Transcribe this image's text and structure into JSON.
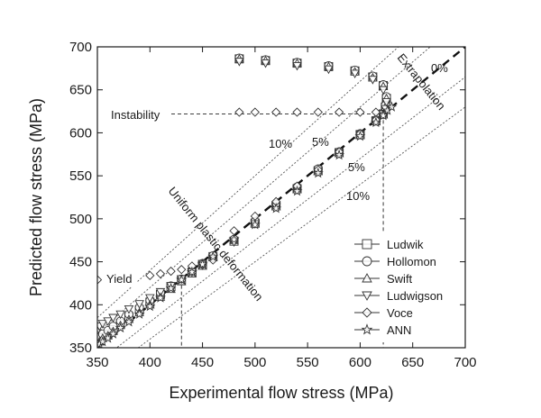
{
  "chart_data": {
    "type": "scatter",
    "xlabel": "Experimental flow stress (MPa)",
    "ylabel": "Predicted flow stress (MPa)",
    "xlim": [
      350,
      700
    ],
    "ylim": [
      350,
      700
    ],
    "xticks": [
      350,
      400,
      450,
      500,
      550,
      600,
      650,
      700
    ],
    "yticks": [
      350,
      400,
      450,
      500,
      550,
      600,
      650,
      700
    ],
    "reference_lines": [
      {
        "label": "0%",
        "ratio": 1.0,
        "style": "dashed-bold"
      },
      {
        "label": "5%",
        "ratio": 1.05,
        "style": "dotted"
      },
      {
        "label": "5%",
        "ratio": 0.95,
        "style": "dotted"
      },
      {
        "label": "10%",
        "ratio": 1.1,
        "style": "dotted"
      },
      {
        "label": "10%",
        "ratio": 0.9,
        "style": "dotted"
      }
    ],
    "annotations": {
      "instability": {
        "text": "Instability",
        "x": 622,
        "y": 622
      },
      "yield": {
        "text": "Yield",
        "x": 350,
        "y": 430
      },
      "yield_exp": 430,
      "uniform": "Uniform plastic deformation",
      "extrapolation": "Extrapolation"
    },
    "series": [
      {
        "name": "Ludwik",
        "marker": "square",
        "points": [
          [
            352,
            358
          ],
          [
            355,
            362
          ],
          [
            360,
            366
          ],
          [
            365,
            371
          ],
          [
            372,
            378
          ],
          [
            380,
            386
          ],
          [
            390,
            394
          ],
          [
            400,
            403
          ],
          [
            410,
            412
          ],
          [
            420,
            421
          ],
          [
            430,
            429
          ],
          [
            440,
            438
          ],
          [
            450,
            447
          ],
          [
            460,
            456
          ],
          [
            480,
            474
          ],
          [
            500,
            495
          ],
          [
            520,
            515
          ],
          [
            540,
            535
          ],
          [
            560,
            556
          ],
          [
            580,
            577
          ],
          [
            600,
            598
          ],
          [
            615,
            614
          ],
          [
            622,
            622
          ],
          [
            624,
            630
          ],
          [
            625,
            640
          ],
          [
            622,
            655
          ],
          [
            612,
            665
          ],
          [
            595,
            672
          ],
          [
            570,
            677
          ],
          [
            540,
            681
          ],
          [
            510,
            684
          ],
          [
            485,
            686
          ]
        ]
      },
      {
        "name": "Hollomon",
        "marker": "circle",
        "points": [
          [
            352,
            362
          ],
          [
            355,
            366
          ],
          [
            360,
            370
          ],
          [
            365,
            375
          ],
          [
            372,
            381
          ],
          [
            380,
            389
          ],
          [
            390,
            397
          ],
          [
            400,
            405
          ],
          [
            410,
            414
          ],
          [
            420,
            422
          ],
          [
            430,
            430
          ],
          [
            440,
            439
          ],
          [
            450,
            448
          ],
          [
            460,
            457
          ],
          [
            480,
            476
          ],
          [
            500,
            497
          ],
          [
            520,
            517
          ],
          [
            540,
            537
          ],
          [
            560,
            558
          ],
          [
            580,
            578
          ],
          [
            600,
            599
          ],
          [
            615,
            615
          ],
          [
            622,
            623
          ],
          [
            624,
            632
          ],
          [
            625,
            642
          ],
          [
            622,
            656
          ],
          [
            612,
            666
          ],
          [
            595,
            673
          ],
          [
            570,
            678
          ],
          [
            540,
            682
          ],
          [
            510,
            685
          ],
          [
            485,
            687
          ]
        ]
      },
      {
        "name": "Swift",
        "marker": "triangle-up",
        "points": [
          [
            352,
            357
          ],
          [
            355,
            361
          ],
          [
            360,
            364
          ],
          [
            365,
            369
          ],
          [
            372,
            376
          ],
          [
            380,
            383
          ],
          [
            390,
            391
          ],
          [
            400,
            400
          ],
          [
            410,
            409
          ],
          [
            420,
            418
          ],
          [
            430,
            427
          ],
          [
            440,
            436
          ],
          [
            450,
            445
          ],
          [
            460,
            455
          ],
          [
            480,
            475
          ],
          [
            500,
            494
          ],
          [
            520,
            514
          ],
          [
            540,
            534
          ],
          [
            560,
            555
          ],
          [
            580,
            576
          ],
          [
            600,
            597
          ],
          [
            615,
            613
          ],
          [
            622,
            621
          ],
          [
            624,
            630
          ],
          [
            625,
            640
          ],
          [
            622,
            654
          ],
          [
            612,
            664
          ],
          [
            595,
            671
          ],
          [
            570,
            677
          ],
          [
            540,
            681
          ],
          [
            510,
            684
          ],
          [
            485,
            686
          ]
        ]
      },
      {
        "name": "Ludwigson",
        "marker": "triangle-down",
        "points": [
          [
            352,
            375
          ],
          [
            355,
            378
          ],
          [
            360,
            381
          ],
          [
            365,
            385
          ],
          [
            372,
            389
          ],
          [
            380,
            395
          ],
          [
            390,
            401
          ],
          [
            400,
            408
          ],
          [
            410,
            415
          ],
          [
            420,
            422
          ],
          [
            430,
            430
          ],
          [
            440,
            438
          ],
          [
            450,
            446
          ],
          [
            460,
            454
          ],
          [
            480,
            473
          ],
          [
            500,
            494
          ],
          [
            520,
            514
          ],
          [
            540,
            534
          ],
          [
            560,
            555
          ],
          [
            580,
            576
          ],
          [
            600,
            598
          ],
          [
            615,
            614
          ],
          [
            622,
            622
          ],
          [
            624,
            628
          ],
          [
            625,
            636
          ],
          [
            622,
            650
          ],
          [
            612,
            662
          ],
          [
            595,
            669
          ],
          [
            570,
            674
          ],
          [
            540,
            678
          ],
          [
            510,
            681
          ],
          [
            485,
            683
          ]
        ]
      },
      {
        "name": "Voce",
        "marker": "diamond",
        "points": [
          [
            350,
            429
          ],
          [
            380,
            432
          ],
          [
            400,
            434
          ],
          [
            410,
            436
          ],
          [
            420,
            439
          ],
          [
            430,
            441
          ],
          [
            440,
            445
          ],
          [
            450,
            448
          ],
          [
            460,
            452
          ],
          [
            480,
            486
          ],
          [
            500,
            503
          ],
          [
            520,
            520
          ],
          [
            540,
            538
          ],
          [
            560,
            557
          ],
          [
            580,
            578
          ],
          [
            600,
            599
          ],
          [
            615,
            615
          ],
          [
            622,
            621
          ],
          [
            615,
            624
          ],
          [
            600,
            624
          ],
          [
            580,
            624
          ],
          [
            560,
            624
          ],
          [
            540,
            624
          ],
          [
            520,
            624
          ],
          [
            500,
            624
          ],
          [
            485,
            624
          ]
        ]
      },
      {
        "name": "ANN",
        "marker": "star",
        "points": [
          [
            352,
            354
          ],
          [
            355,
            357
          ],
          [
            360,
            361
          ],
          [
            365,
            366
          ],
          [
            372,
            373
          ],
          [
            380,
            380
          ],
          [
            390,
            389
          ],
          [
            400,
            398
          ],
          [
            410,
            408
          ],
          [
            420,
            419
          ],
          [
            430,
            429
          ],
          [
            440,
            438
          ],
          [
            450,
            447
          ],
          [
            460,
            456
          ],
          [
            480,
            476
          ],
          [
            500,
            493
          ],
          [
            520,
            512
          ],
          [
            540,
            532
          ],
          [
            560,
            553
          ],
          [
            580,
            574
          ],
          [
            600,
            596
          ],
          [
            615,
            612
          ],
          [
            622,
            620
          ],
          [
            626,
            626
          ],
          [
            630,
            630
          ]
        ]
      }
    ]
  },
  "annotation_texts": {
    "zero_pct": "0%",
    "five_pct_upper": "5%",
    "five_pct_lower": "5%",
    "ten_pct_upper": "10%",
    "ten_pct_lower": "10%"
  },
  "colors": {
    "axis": "#1a1a1a",
    "marker_stroke": "#333333",
    "reference_line": "#555555",
    "background": "#ffffff"
  }
}
